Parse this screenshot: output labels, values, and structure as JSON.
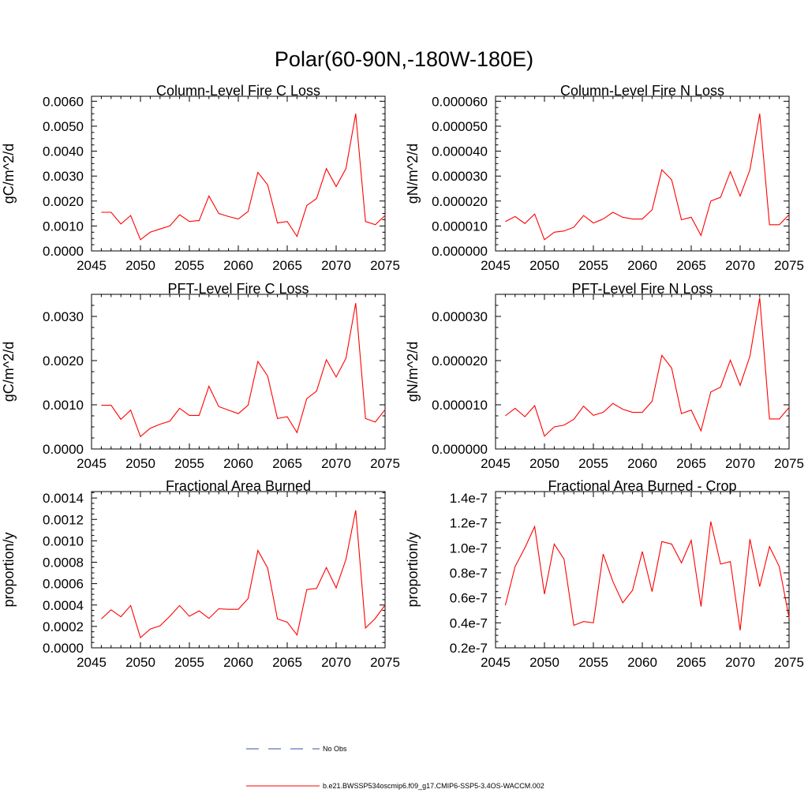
{
  "figure_title": "Polar(60-90N,-180W-180E)",
  "legend": [
    {
      "label": "No Obs",
      "color": "#3a4fa8",
      "dashed": true
    },
    {
      "label": "b.e21.BWSSP534oscmip6.f09_g17.CMIP6-SSP5-3.4OS-WACCM.002",
      "color": "#ff0000",
      "dashed": false
    }
  ],
  "chart_data": [
    {
      "type": "line",
      "title": "Column-Level Fire C Loss",
      "ylabel": "gC/m^2/d",
      "xlim": [
        2045,
        2075
      ],
      "ylim": [
        0,
        0.0062
      ],
      "xticks": [
        2045,
        2050,
        2055,
        2060,
        2065,
        2070,
        2075
      ],
      "yticks": [
        0,
        0.001,
        0.002,
        0.003,
        0.004,
        0.005,
        0.006
      ],
      "ytick_labels": [
        "0.0000",
        "0.0010",
        "0.0020",
        "0.0030",
        "0.0040",
        "0.0050",
        "0.0060"
      ],
      "x": [
        2046,
        2047,
        2048,
        2049,
        2050,
        2051,
        2052,
        2053,
        2054,
        2055,
        2056,
        2057,
        2058,
        2059,
        2060,
        2061,
        2062,
        2063,
        2064,
        2065,
        2066,
        2067,
        2068,
        2069,
        2070,
        2071,
        2072,
        2073,
        2074,
        2075
      ],
      "series": [
        {
          "color": "#ff0000",
          "values": [
            0.00155,
            0.00155,
            0.00108,
            0.00142,
            0.00045,
            0.00075,
            0.00088,
            0.001,
            0.00145,
            0.00118,
            0.00122,
            0.0022,
            0.0015,
            0.00138,
            0.00128,
            0.00158,
            0.00315,
            0.00265,
            0.00112,
            0.00118,
            0.00058,
            0.00182,
            0.0021,
            0.0033,
            0.00258,
            0.0033,
            0.0055,
            0.00118,
            0.00105,
            0.00142
          ]
        }
      ]
    },
    {
      "type": "line",
      "title": "Column-Level Fire N Loss",
      "ylabel": "gN/m^2/d",
      "xlim": [
        2045,
        2075
      ],
      "ylim": [
        0,
        6.2e-05
      ],
      "xticks": [
        2045,
        2050,
        2055,
        2060,
        2065,
        2070,
        2075
      ],
      "yticks": [
        0,
        1e-05,
        2e-05,
        3e-05,
        4e-05,
        5e-05,
        6e-05
      ],
      "ytick_labels": [
        "0.000000",
        "0.000010",
        "0.000020",
        "0.000030",
        "0.000040",
        "0.000050",
        "0.000060"
      ],
      "x": [
        2046,
        2047,
        2048,
        2049,
        2050,
        2051,
        2052,
        2053,
        2054,
        2055,
        2056,
        2057,
        2058,
        2059,
        2060,
        2061,
        2062,
        2063,
        2064,
        2065,
        2066,
        2067,
        2068,
        2069,
        2070,
        2071,
        2072,
        2073,
        2074,
        2075
      ],
      "series": [
        {
          "color": "#ff0000",
          "values": [
            1.18e-05,
            1.38e-05,
            1.1e-05,
            1.48e-05,
            4.5e-06,
            7.5e-06,
            8e-06,
            9.5e-06,
            1.42e-05,
            1.12e-05,
            1.28e-05,
            1.55e-05,
            1.35e-05,
            1.28e-05,
            1.28e-05,
            1.65e-05,
            3.25e-05,
            2.85e-05,
            1.25e-05,
            1.35e-05,
            6.2e-06,
            2e-05,
            2.15e-05,
            3.18e-05,
            2.2e-05,
            3.25e-05,
            5.5e-05,
            1.05e-05,
            1.05e-05,
            1.45e-05
          ]
        }
      ]
    },
    {
      "type": "line",
      "title": "PFT-Level Fire C Loss",
      "ylabel": "gC/m^2/d",
      "xlim": [
        2045,
        2075
      ],
      "ylim": [
        0,
        0.0035
      ],
      "xticks": [
        2045,
        2050,
        2055,
        2060,
        2065,
        2070,
        2075
      ],
      "yticks": [
        0,
        0.001,
        0.002,
        0.003
      ],
      "ytick_labels": [
        "0.0000",
        "0.0010",
        "0.0020",
        "0.0030"
      ],
      "x": [
        2046,
        2047,
        2048,
        2049,
        2050,
        2051,
        2052,
        2053,
        2054,
        2055,
        2056,
        2057,
        2058,
        2059,
        2060,
        2061,
        2062,
        2063,
        2064,
        2065,
        2066,
        2067,
        2068,
        2069,
        2070,
        2071,
        2072,
        2073,
        2074,
        2075
      ],
      "series": [
        {
          "color": "#ff0000",
          "values": [
            0.00099,
            0.00099,
            0.00067,
            0.00088,
            0.00028,
            0.00047,
            0.00056,
            0.00063,
            0.00092,
            0.00076,
            0.00076,
            0.00142,
            0.00096,
            0.00088,
            0.0008,
            0.00099,
            0.00198,
            0.00165,
            0.00069,
            0.00073,
            0.00037,
            0.00114,
            0.00131,
            0.00202,
            0.00163,
            0.00205,
            0.0033,
            0.00069,
            0.00061,
            0.00089
          ]
        }
      ]
    },
    {
      "type": "line",
      "title": "PFT-Level Fire N Loss",
      "ylabel": "gN/m^2/d",
      "xlim": [
        2045,
        2075
      ],
      "ylim": [
        0,
        3.5e-05
      ],
      "xticks": [
        2045,
        2050,
        2055,
        2060,
        2065,
        2070,
        2075
      ],
      "yticks": [
        0,
        1e-05,
        2e-05,
        3e-05
      ],
      "ytick_labels": [
        "0.000000",
        "0.000010",
        "0.000020",
        "0.000030"
      ],
      "x": [
        2046,
        2047,
        2048,
        2049,
        2050,
        2051,
        2052,
        2053,
        2054,
        2055,
        2056,
        2057,
        2058,
        2059,
        2060,
        2061,
        2062,
        2063,
        2064,
        2065,
        2066,
        2067,
        2068,
        2069,
        2070,
        2071,
        2072,
        2073,
        2074,
        2075
      ],
      "series": [
        {
          "color": "#ff0000",
          "values": [
            7.5e-06,
            9.2e-06,
            7.3e-06,
            9.8e-06,
            2.9e-06,
            5e-06,
            5.4e-06,
            6.7e-06,
            9.7e-06,
            7.6e-06,
            8.3e-06,
            1.03e-05,
            9e-06,
            8.3e-06,
            8.3e-06,
            1.08e-05,
            2.12e-05,
            1.83e-05,
            8e-06,
            8.8e-06,
            4.1e-06,
            1.29e-05,
            1.4e-05,
            2.01e-05,
            1.44e-05,
            2.1e-05,
            3.42e-05,
            6.8e-06,
            6.8e-06,
            9.4e-06
          ]
        }
      ]
    },
    {
      "type": "line",
      "title": "Fractional Area Burned",
      "ylabel": "proportion/y",
      "xlim": [
        2045,
        2075
      ],
      "ylim": [
        0,
        0.00146
      ],
      "xticks": [
        2045,
        2050,
        2055,
        2060,
        2065,
        2070,
        2075
      ],
      "yticks": [
        0,
        0.0002,
        0.0004,
        0.0006,
        0.0008,
        0.001,
        0.0012,
        0.0014
      ],
      "ytick_labels": [
        "0.0000",
        "0.0002",
        "0.0004",
        "0.0006",
        "0.0008",
        "0.0010",
        "0.0012",
        "0.0014"
      ],
      "x": [
        2046,
        2047,
        2048,
        2049,
        2050,
        2051,
        2052,
        2053,
        2054,
        2055,
        2056,
        2057,
        2058,
        2059,
        2060,
        2061,
        2062,
        2063,
        2064,
        2065,
        2066,
        2067,
        2068,
        2069,
        2070,
        2071,
        2072,
        2073,
        2074,
        2075
      ],
      "series": [
        {
          "color": "#ff0000",
          "values": [
            0.00027,
            0.000355,
            0.00029,
            0.000395,
            9.5e-05,
            0.000175,
            0.000205,
            0.000295,
            0.000395,
            0.000295,
            0.000345,
            0.000275,
            0.000365,
            0.00036,
            0.00036,
            0.00046,
            0.00091,
            0.000745,
            0.00027,
            0.00024,
            0.00012,
            0.000545,
            0.000555,
            0.00075,
            0.00056,
            0.000825,
            0.001285,
            0.000185,
            0.000275,
            0.0004
          ]
        }
      ]
    },
    {
      "type": "line",
      "title": "Fractional Area Burned - Crop",
      "ylabel": "proportion/y",
      "xlim": [
        2045,
        2075
      ],
      "ylim": [
        2e-08,
        1.45e-07
      ],
      "xticks": [
        2045,
        2050,
        2055,
        2060,
        2065,
        2070,
        2075
      ],
      "yticks": [
        2e-08,
        4e-08,
        6e-08,
        8e-08,
        1e-07,
        1.2e-07,
        1.4e-07
      ],
      "ytick_labels": [
        "0.2e-7",
        "0.4e-7",
        "0.6e-7",
        "0.8e-7",
        "1.0e-7",
        "1.2e-7",
        "1.4e-7"
      ],
      "x": [
        2046,
        2047,
        2048,
        2049,
        2050,
        2051,
        2052,
        2053,
        2054,
        2055,
        2056,
        2057,
        2058,
        2059,
        2060,
        2061,
        2062,
        2063,
        2064,
        2065,
        2066,
        2067,
        2068,
        2069,
        2070,
        2071,
        2072,
        2073,
        2074,
        2075
      ],
      "series": [
        {
          "color": "#ff0000",
          "values": [
            5.4e-08,
            8.5e-08,
            1e-07,
            1.17e-07,
            6.3e-08,
            1.03e-07,
            9.1e-08,
            3.8e-08,
            4.1e-08,
            4e-08,
            9.5e-08,
            7.3e-08,
            5.6e-08,
            6.6e-08,
            9.7e-08,
            6.5e-08,
            1.05e-07,
            1.03e-07,
            8.8e-08,
            1.06e-07,
            5.3e-08,
            1.21e-07,
            8.7e-08,
            8.9e-08,
            3.4e-08,
            1.07e-07,
            6.9e-08,
            1.01e-07,
            8.5e-08,
            4.4e-08
          ]
        }
      ]
    }
  ]
}
